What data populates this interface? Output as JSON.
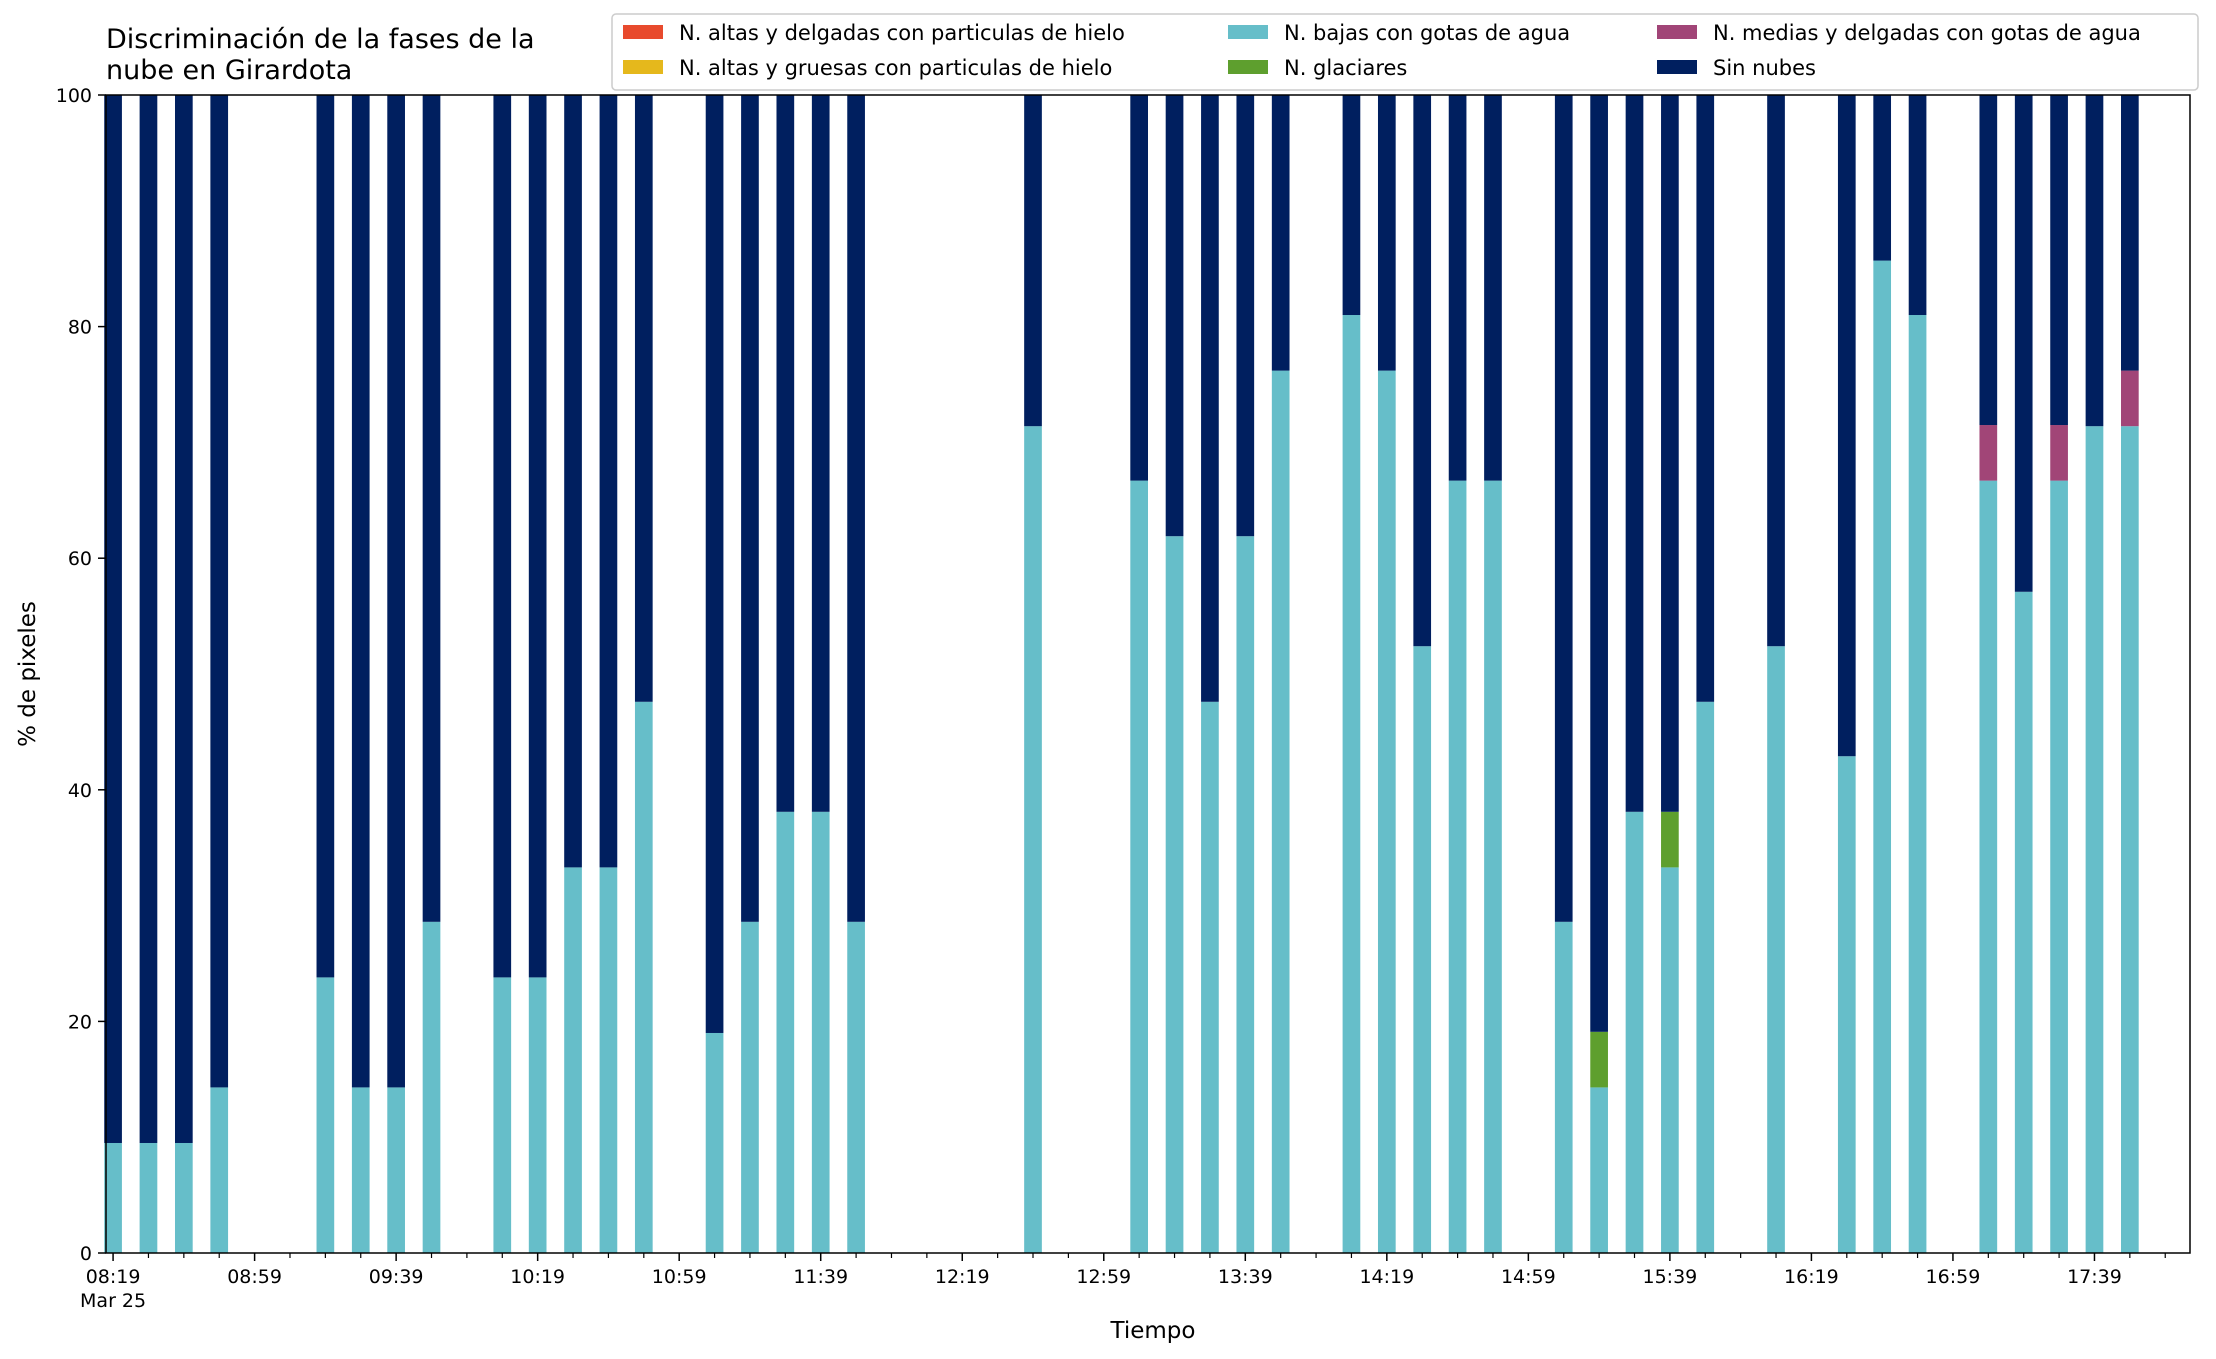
{
  "chart_data": {
    "type": "bar",
    "stacked": true,
    "title": "Discriminación de la fases de la\nnube en Girardota",
    "xlabel": "Tiempo",
    "ylabel": "% de pixeles",
    "ylim": [
      0,
      100
    ],
    "yticks": [
      0,
      20,
      40,
      60,
      80,
      100
    ],
    "x_date_label": "Mar 25",
    "x_tick_labels": [
      "08:19",
      "08:59",
      "09:39",
      "10:19",
      "10:59",
      "11:39",
      "12:19",
      "12:59",
      "13:39",
      "14:19",
      "14:59",
      "15:39",
      "16:19",
      "16:59",
      "17:39"
    ],
    "x_minor_step_min": 10,
    "x_range_min": [
      497,
      1086
    ],
    "grid": false,
    "legend_position": "top-right",
    "colors": {
      "n_altas_delgadas": "#e84a2d",
      "n_altas_gruesas": "#e5b81c",
      "n_bajas": "#66bec9",
      "n_glaciares": "#5e9f2e",
      "n_medias": "#a14577",
      "sin_nubes": "#001f5f"
    },
    "legend": [
      {
        "key": "n_altas_delgadas",
        "label": "N. altas y delgadas con particulas de hielo"
      },
      {
        "key": "n_bajas",
        "label": "N. bajas con gotas de agua"
      },
      {
        "key": "n_medias",
        "label": "N. medias y delgadas con gotas de agua"
      },
      {
        "key": "n_altas_gruesas",
        "label": "N. altas y gruesas con particulas de hielo"
      },
      {
        "key": "n_glaciares",
        "label": "N. glaciares"
      },
      {
        "key": "sin_nubes",
        "label": "Sin nubes"
      }
    ],
    "x": [
      "08:19",
      "08:29",
      "08:39",
      "08:49",
      "09:19",
      "09:29",
      "09:39",
      "09:49",
      "10:09",
      "10:19",
      "10:29",
      "10:39",
      "10:49",
      "11:09",
      "11:19",
      "11:29",
      "11:39",
      "11:49",
      "12:39",
      "13:09",
      "13:19",
      "13:29",
      "13:39",
      "13:49",
      "14:09",
      "14:19",
      "14:29",
      "14:39",
      "14:49",
      "15:09",
      "15:19",
      "15:29",
      "15:39",
      "15:49",
      "16:09",
      "16:29",
      "16:39",
      "16:49",
      "17:09",
      "17:19",
      "17:29",
      "17:39",
      "17:49"
    ],
    "x_minutes": [
      499,
      509,
      519,
      529,
      559,
      569,
      579,
      589,
      609,
      619,
      629,
      639,
      649,
      669,
      679,
      689,
      699,
      709,
      759,
      789,
      799,
      809,
      819,
      829,
      849,
      859,
      869,
      879,
      889,
      909,
      919,
      929,
      939,
      949,
      969,
      989,
      999,
      1009,
      1029,
      1039,
      1049,
      1059,
      1069
    ],
    "series": [
      {
        "name": "N. bajas con gotas de agua",
        "key": "n_bajas",
        "values": [
          9.5,
          9.5,
          9.5,
          14.3,
          23.8,
          14.3,
          14.3,
          28.6,
          23.8,
          23.8,
          33.3,
          33.3,
          47.6,
          19.0,
          28.6,
          38.1,
          38.1,
          28.6,
          71.4,
          66.7,
          61.9,
          47.6,
          61.9,
          76.2,
          81.0,
          76.2,
          52.4,
          66.7,
          66.7,
          28.6,
          14.3,
          38.1,
          33.3,
          47.6,
          52.4,
          42.9,
          85.7,
          81.0,
          66.7,
          57.1,
          66.7,
          71.4,
          71.4
        ]
      },
      {
        "name": "N. glaciares",
        "key": "n_glaciares",
        "values": [
          0,
          0,
          0,
          0,
          0,
          0,
          0,
          0,
          0,
          0,
          0,
          0,
          0,
          0,
          0,
          0,
          0,
          0,
          0,
          0,
          0,
          0,
          0,
          0,
          0,
          0,
          0,
          0,
          0,
          0,
          4.8,
          0,
          4.8,
          0,
          0,
          0,
          0,
          0,
          0,
          0,
          0,
          0,
          0
        ]
      },
      {
        "name": "N. medias y delgadas con gotas de agua",
        "key": "n_medias",
        "values": [
          0,
          0,
          0,
          0,
          0,
          0,
          0,
          0,
          0,
          0,
          0,
          0,
          0,
          0,
          0,
          0,
          0,
          0,
          0,
          0,
          0,
          0,
          0,
          0,
          0,
          0,
          0,
          0,
          0,
          0,
          0,
          0,
          0,
          0,
          0,
          0,
          0,
          0,
          4.8,
          0,
          4.8,
          0,
          4.8
        ]
      },
      {
        "name": "Sin nubes",
        "key": "sin_nubes",
        "values": [
          90.5,
          90.5,
          90.5,
          85.7,
          76.2,
          85.7,
          85.7,
          71.4,
          76.2,
          76.2,
          66.7,
          66.7,
          52.4,
          81.0,
          71.4,
          61.9,
          61.9,
          71.4,
          28.6,
          33.3,
          38.1,
          52.4,
          38.1,
          23.8,
          19.0,
          23.8,
          47.6,
          33.3,
          33.3,
          71.4,
          80.9,
          61.9,
          61.9,
          52.4,
          47.6,
          57.1,
          14.3,
          19.0,
          28.5,
          42.9,
          28.5,
          28.6,
          23.8
        ]
      }
    ]
  }
}
